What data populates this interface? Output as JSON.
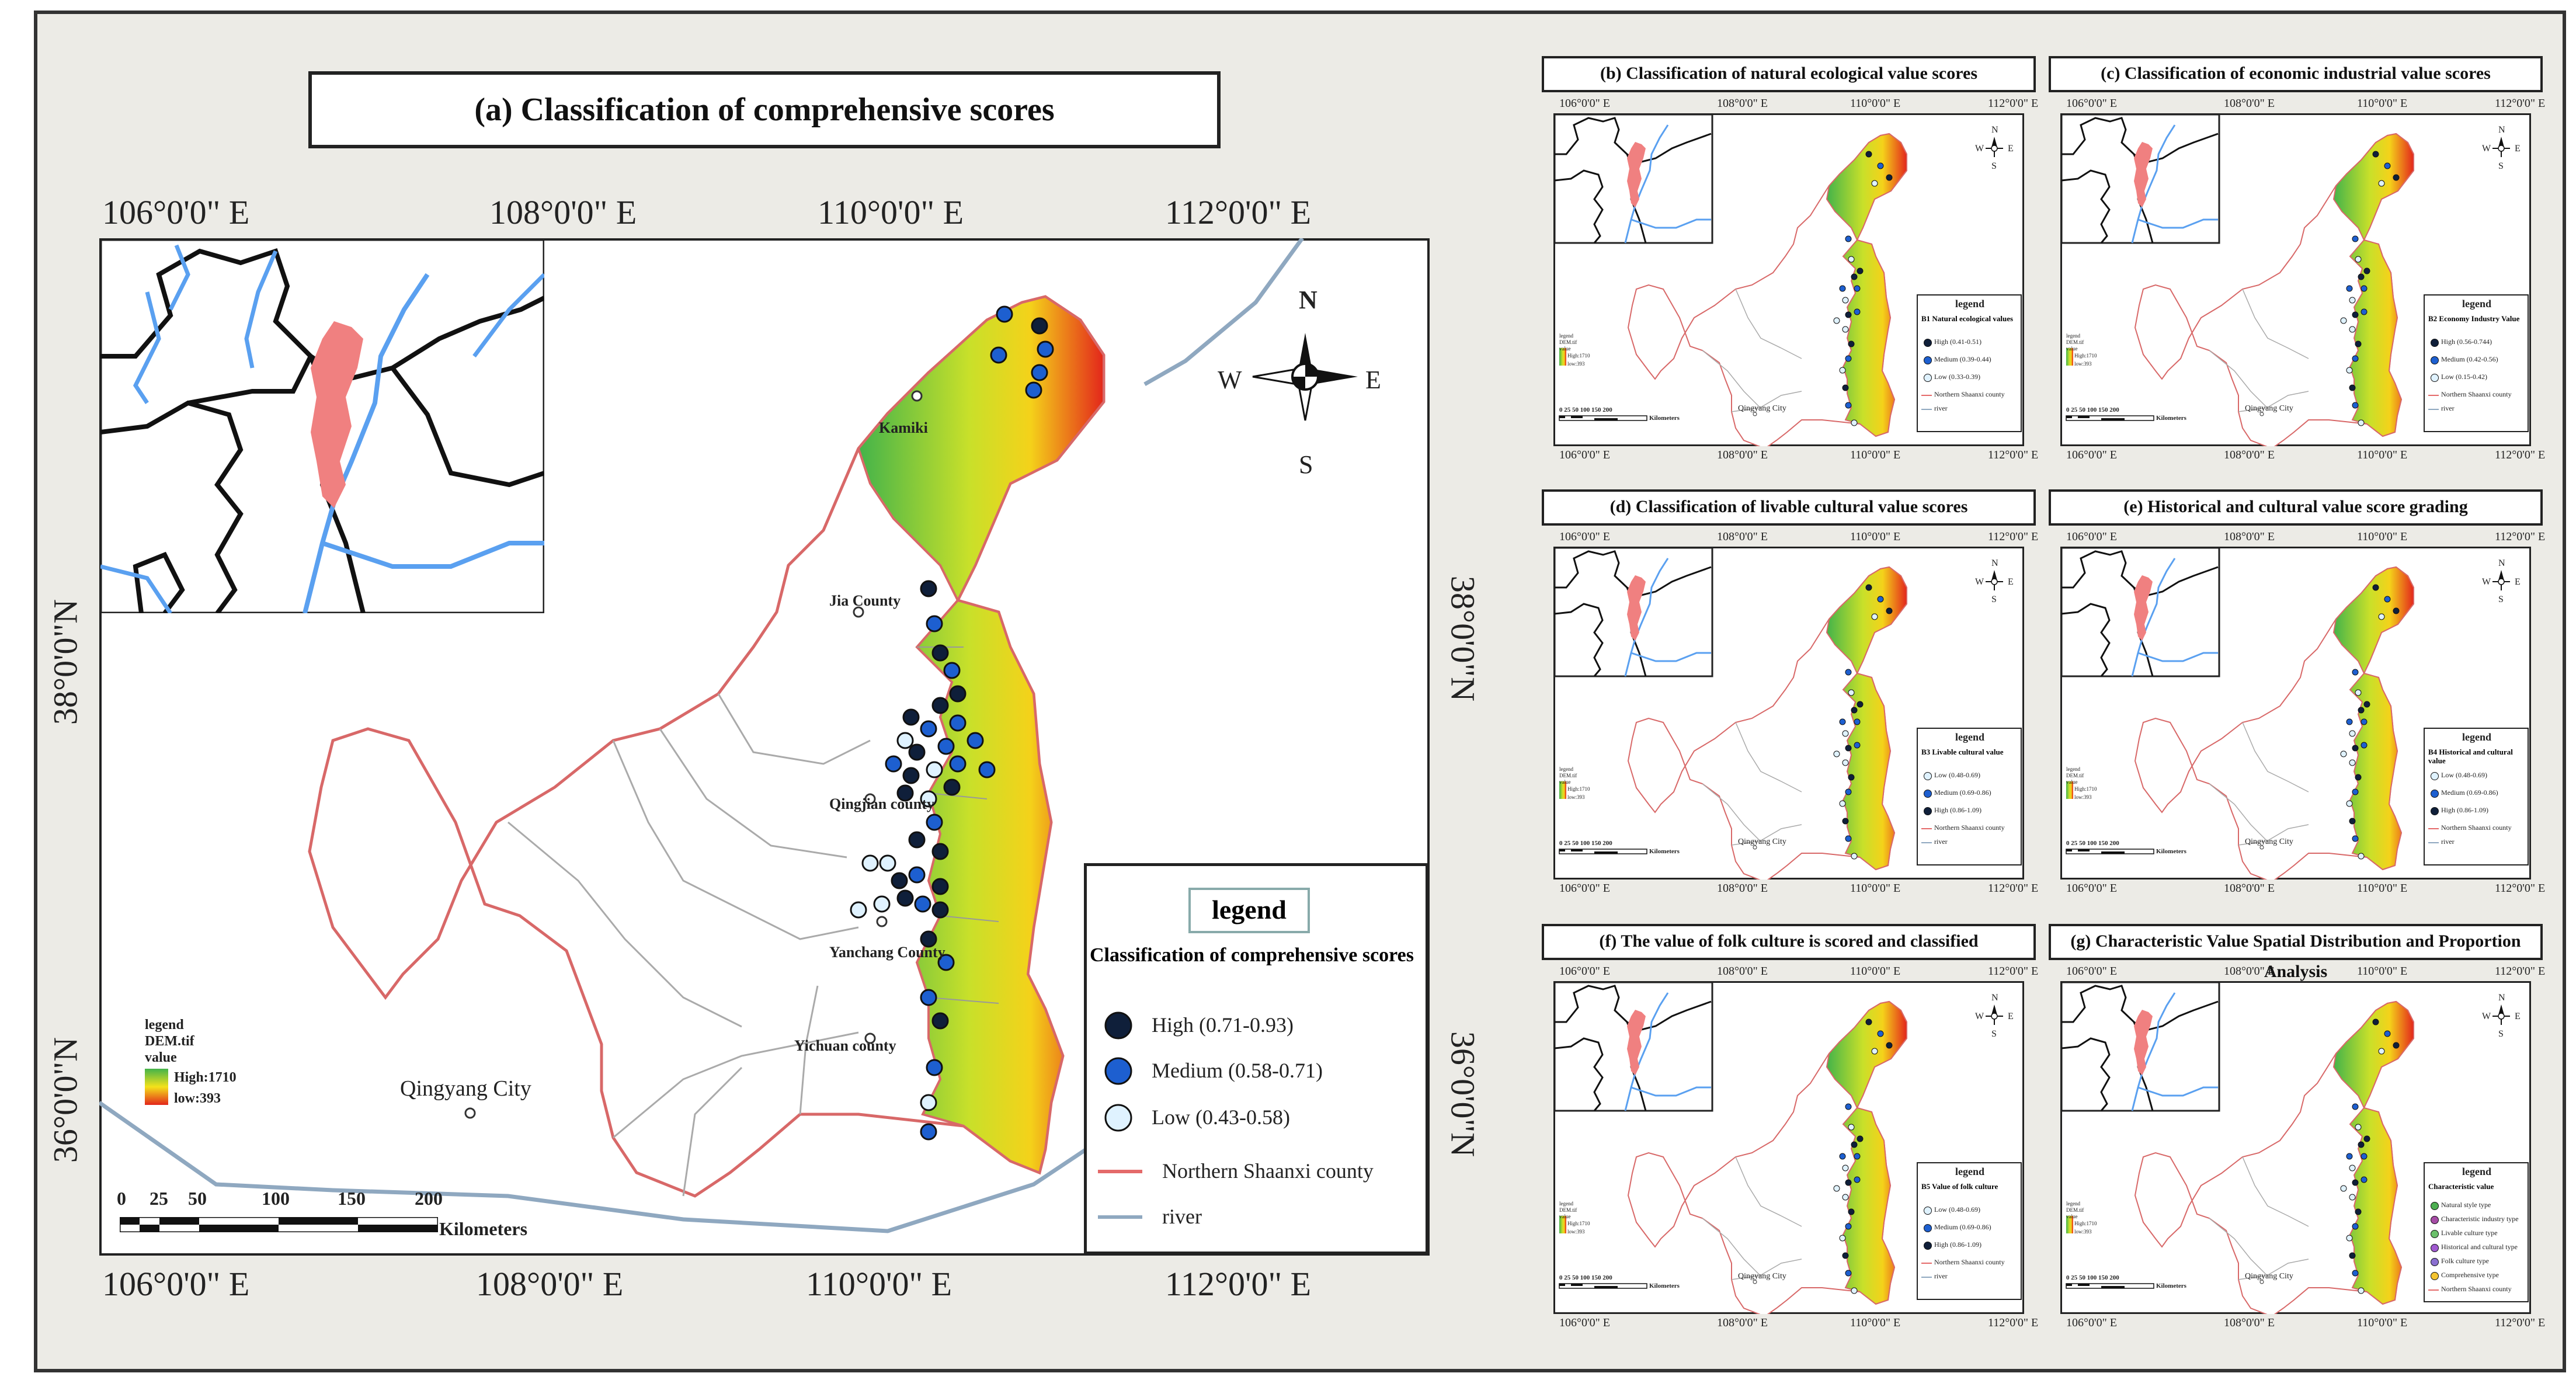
{
  "main": {
    "title": "(a) Classification of comprehensive scores",
    "top_ticks": [
      "106°0'0\" E",
      "108°0'0\" E",
      "110°0'0\" E",
      "112°0'0\" E"
    ],
    "bottom_ticks": [
      "106°0'0\" E",
      "108°0'0\" E",
      "110°0'0\" E",
      "112°0'0\" E"
    ],
    "left_ticks": [
      "38°0'0\"N",
      "36°0'0\"N"
    ],
    "right_ticks": [
      "38°0'0\"N",
      "36°0'0\"N"
    ],
    "places": {
      "kamiki": "Kamiki",
      "jia": "Jia County",
      "qingjian": "Qingjian county",
      "yanchang": "Yanchang County",
      "yichuan": "Yichuan county",
      "qingyang": "Qingyang City"
    },
    "compass": {
      "n": "N",
      "s": "S",
      "e": "E",
      "w": "W"
    },
    "dem_legend": {
      "title": "legend",
      "file": "DEM.tif",
      "value": "value",
      "high": "High:1710",
      "low": "low:393"
    },
    "scale": {
      "labels": [
        "0",
        "25",
        "50",
        "100",
        "150",
        "200"
      ],
      "unit": "Kilometers"
    },
    "legend": {
      "title": "legend",
      "subtitle": "Classification of comprehensive scores",
      "items": [
        {
          "label": "High (0.71-0.93)",
          "color": "#0f1f3a"
        },
        {
          "label": "Medium (0.58-0.71)",
          "color": "#1d5fd0"
        },
        {
          "label": "Low (0.43-0.58)",
          "color": "#dff2ff"
        }
      ],
      "county": "Northern Shaanxi county",
      "river": "river",
      "county_color": "#e46a6a",
      "river_color": "#8fa8c0"
    }
  },
  "panels": [
    {
      "title": "(b) Classification of natural ecological value scores",
      "legend_title": "legend",
      "legend_sub": "B1 Natural ecological values",
      "items": [
        "High (0.41-0.51)",
        "Medium (0.39-0.44)",
        "Low (0.33-0.39)"
      ],
      "county": "Northern Shaanxi county",
      "river": "river"
    },
    {
      "title": "(c) Classification of economic industrial value scores",
      "legend_title": "legend",
      "legend_sub": "B2 Economy Industry Value",
      "items": [
        "High (0.56-0.744)",
        "Medium (0.42-0.56)",
        "Low (0.15-0.42)"
      ],
      "county": "Northern Shaanxi county",
      "river": "river"
    },
    {
      "title": "(d) Classification of livable cultural value scores",
      "legend_title": "legend",
      "legend_sub": "B3 Livable cultural value",
      "items": [
        "Low (0.48-0.69)",
        "Medium (0.69-0.86)",
        "High (0.86-1.09)"
      ],
      "county": "Northern Shaanxi county",
      "river": "river"
    },
    {
      "title": "(e) Historical and cultural value score grading",
      "legend_title": "legend",
      "legend_sub": "B4 Historical and cultural value",
      "items": [
        "Low (0.48-0.69)",
        "Medium (0.69-0.86)",
        "High (0.86-1.09)"
      ],
      "county": "Northern Shaanxi county",
      "river": "river"
    },
    {
      "title": "(f) The value of folk culture is scored and classified",
      "legend_title": "legend",
      "legend_sub": "B5 Value of folk culture",
      "items": [
        "Low (0.48-0.69)",
        "Medium (0.69-0.86)",
        "High (0.86-1.09)"
      ],
      "county": "Northern Shaanxi county",
      "river": "river"
    },
    {
      "title": "(g) Characteristic Value Spatial Distribution and Proportion Analysis",
      "legend_title": "legend",
      "legend_sub": "Characteristic value",
      "items": [
        "Natural style type",
        "Characteristic industry type",
        "Livable culture type",
        "Historical and cultural type",
        "Folk culture type",
        "Comprehensive type"
      ],
      "county": "Northern Shaanxi county",
      "river": ""
    }
  ],
  "panel_common": {
    "top_ticks": [
      "106°0'0\" E",
      "108°0'0\" E",
      "110°0'0\" E",
      "112°0'0\" E"
    ],
    "city": "Qingyang City",
    "scale": "0 25 50  100  150  200",
    "unit": "Kilometers",
    "dem": [
      "legend",
      "DEM.tif",
      "value",
      "High:1710",
      "low:393"
    ]
  },
  "colors": {
    "dem_high": "#43b34a",
    "dem_mid": "#f4e21a",
    "dem_low": "#e3261b",
    "county_line": "#e46a6a",
    "river": "#8fb8e6",
    "highlight": "#f08080"
  }
}
